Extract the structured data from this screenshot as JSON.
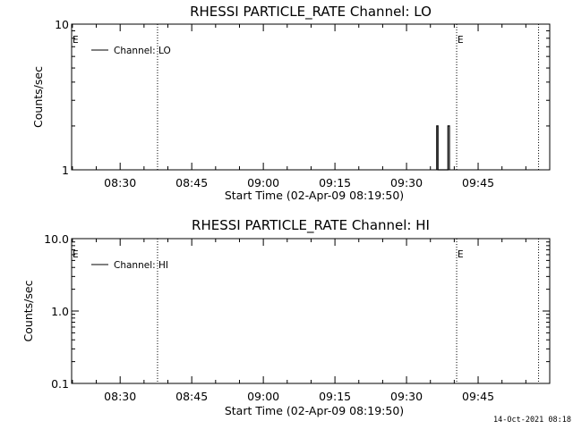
{
  "footer": {
    "timestamp": "14-Oct-2021 08:18"
  },
  "chart_data": [
    {
      "type": "line",
      "title": "RHESSI PARTICLE_RATE Channel: LO",
      "xlabel": "Start Time (02-Apr-09 08:19:50)",
      "ylabel": "Counts/sec",
      "y_scale": "log",
      "ylim": [
        1,
        10
      ],
      "y_ticks": [
        {
          "value": 1,
          "label": "1"
        },
        {
          "value": 10,
          "label": "10"
        }
      ],
      "x_range": [
        "08:19:50",
        "10:00:00"
      ],
      "x_ticks": [
        {
          "t": "08:30",
          "label": "08:30"
        },
        {
          "t": "08:45",
          "label": "08:45"
        },
        {
          "t": "09:00",
          "label": "09:00"
        },
        {
          "t": "09:15",
          "label": "09:15"
        },
        {
          "t": "09:30",
          "label": "09:30"
        },
        {
          "t": "09:45",
          "label": "09:45"
        }
      ],
      "legend": {
        "position": "top-left",
        "entries": [
          "Channel: LO"
        ]
      },
      "eclipse_markers": [
        {
          "t": "08:19:50",
          "label": "E"
        },
        {
          "t": "09:40:30",
          "label": "E"
        }
      ],
      "dotted_vlines": [
        "08:37:50",
        "09:40:30",
        "09:57:40"
      ],
      "series": [
        {
          "name": "Channel: LO",
          "points": [
            [
              "09:36:20",
              1
            ],
            [
              "09:36:20",
              2
            ],
            [
              "09:36:35",
              2
            ],
            [
              "09:36:35",
              1
            ],
            [
              "09:38:40",
              1
            ],
            [
              "09:38:40",
              2
            ],
            [
              "09:39:00",
              2
            ],
            [
              "09:39:00",
              1
            ]
          ]
        }
      ]
    },
    {
      "type": "line",
      "title": "RHESSI PARTICLE_RATE Channel: HI",
      "xlabel": "Start Time (02-Apr-09 08:19:50)",
      "ylabel": "Counts/sec",
      "y_scale": "log",
      "ylim": [
        0.1,
        10
      ],
      "y_ticks": [
        {
          "value": 0.1,
          "label": "0.1"
        },
        {
          "value": 1,
          "label": "1.0"
        },
        {
          "value": 10,
          "label": "10.0"
        }
      ],
      "x_range": [
        "08:19:50",
        "10:00:00"
      ],
      "x_ticks": [
        {
          "t": "08:30",
          "label": "08:30"
        },
        {
          "t": "08:45",
          "label": "08:45"
        },
        {
          "t": "09:00",
          "label": "09:00"
        },
        {
          "t": "09:15",
          "label": "09:15"
        },
        {
          "t": "09:30",
          "label": "09:30"
        },
        {
          "t": "09:45",
          "label": "09:45"
        }
      ],
      "legend": {
        "position": "top-left",
        "entries": [
          "Channel: HI"
        ]
      },
      "eclipse_markers": [
        {
          "t": "08:19:50",
          "label": "E"
        },
        {
          "t": "09:40:30",
          "label": "E"
        }
      ],
      "dotted_vlines": [
        "08:37:50",
        "09:40:30",
        "09:57:40"
      ],
      "series": [
        {
          "name": "Channel: HI",
          "points": []
        }
      ]
    }
  ]
}
